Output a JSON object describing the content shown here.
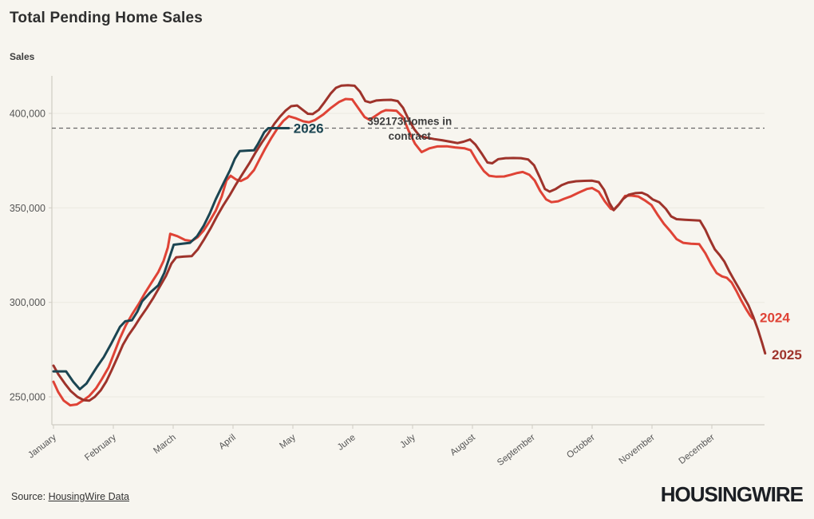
{
  "header": {
    "title": "Total Pending Home Sales",
    "y_axis_title": "Sales"
  },
  "footer": {
    "source_prefix": "Source: ",
    "source_link": "HousingWire Data",
    "logo": "HOUSINGWIRE"
  },
  "colors": {
    "background": "#f7f5ef",
    "axis": "#cfccc3",
    "grid": "#ebe9e1",
    "tick_text": "#555555",
    "reference_line": "#686868",
    "annotation_text": "#3d3d3d",
    "series_2024": "#df4336",
    "series_2025": "#9e332b",
    "series_2026": "#1b4552"
  },
  "chart_data": {
    "type": "line",
    "title": "Total Pending Home Sales",
    "ylabel": "Sales",
    "ylim": [
      235000,
      420000
    ],
    "yticks": [
      250000,
      300000,
      350000,
      400000
    ],
    "xticklabels": [
      "January",
      "February",
      "March",
      "April",
      "May",
      "June",
      "July",
      "August",
      "September",
      "October",
      "November",
      "December"
    ],
    "grid": "horizontal-faint",
    "legend_position": "end-of-line-labels",
    "reference_line": {
      "value": 392173,
      "annotation_line1": "392173Homes in",
      "annotation_line2": "contract",
      "annotation_x_month": 5.95
    },
    "series": [
      {
        "name": "2024",
        "color_key": "series_2024",
        "points": [
          [
            0.0,
            258000
          ],
          [
            0.08,
            252500
          ],
          [
            0.17,
            248000
          ],
          [
            0.28,
            245500
          ],
          [
            0.39,
            246000
          ],
          [
            0.49,
            248000
          ],
          [
            0.6,
            250500
          ],
          [
            0.71,
            254500
          ],
          [
            0.81,
            259500
          ],
          [
            0.92,
            265500
          ],
          [
            1.0,
            272000
          ],
          [
            1.11,
            281000
          ],
          [
            1.21,
            288000
          ],
          [
            1.32,
            294000
          ],
          [
            1.43,
            299500
          ],
          [
            1.53,
            305000
          ],
          [
            1.64,
            310500
          ],
          [
            1.75,
            316000
          ],
          [
            1.84,
            322000
          ],
          [
            1.91,
            329000
          ],
          [
            1.95,
            336300
          ],
          [
            2.07,
            335000
          ],
          [
            2.2,
            333000
          ],
          [
            2.31,
            332500
          ],
          [
            2.41,
            334500
          ],
          [
            2.51,
            338000
          ],
          [
            2.61,
            343000
          ],
          [
            2.71,
            348500
          ],
          [
            2.81,
            356000
          ],
          [
            2.89,
            364500
          ],
          [
            2.96,
            367000
          ],
          [
            3.05,
            365000
          ],
          [
            3.13,
            364200
          ],
          [
            3.24,
            366000
          ],
          [
            3.35,
            370000
          ],
          [
            3.44,
            375500
          ],
          [
            3.53,
            381000
          ],
          [
            3.64,
            387000
          ],
          [
            3.75,
            392500
          ],
          [
            3.84,
            396000
          ],
          [
            3.93,
            398500
          ],
          [
            4.04,
            397500
          ],
          [
            4.17,
            395800
          ],
          [
            4.27,
            395300
          ],
          [
            4.37,
            396500
          ],
          [
            4.51,
            399500
          ],
          [
            4.64,
            403000
          ],
          [
            4.77,
            406000
          ],
          [
            4.88,
            407600
          ],
          [
            4.99,
            407400
          ],
          [
            5.11,
            402000
          ],
          [
            5.2,
            398000
          ],
          [
            5.28,
            396600
          ],
          [
            5.37,
            398500
          ],
          [
            5.48,
            400800
          ],
          [
            5.55,
            401700
          ],
          [
            5.64,
            401600
          ],
          [
            5.73,
            401400
          ],
          [
            5.84,
            398000
          ],
          [
            5.93,
            391000
          ],
          [
            6.04,
            384000
          ],
          [
            6.15,
            379500
          ],
          [
            6.28,
            381500
          ],
          [
            6.41,
            382500
          ],
          [
            6.57,
            382600
          ],
          [
            6.71,
            382000
          ],
          [
            6.87,
            381500
          ],
          [
            6.97,
            380500
          ],
          [
            7.08,
            374500
          ],
          [
            7.19,
            369500
          ],
          [
            7.28,
            367000
          ],
          [
            7.4,
            366500
          ],
          [
            7.53,
            366600
          ],
          [
            7.64,
            367500
          ],
          [
            7.75,
            368500
          ],
          [
            7.84,
            369000
          ],
          [
            7.95,
            367500
          ],
          [
            8.04,
            364500
          ],
          [
            8.13,
            359000
          ],
          [
            8.23,
            354500
          ],
          [
            8.32,
            353000
          ],
          [
            8.43,
            353500
          ],
          [
            8.53,
            354800
          ],
          [
            8.64,
            356000
          ],
          [
            8.77,
            358000
          ],
          [
            8.91,
            360000
          ],
          [
            9.0,
            360500
          ],
          [
            9.11,
            358500
          ],
          [
            9.21,
            353500
          ],
          [
            9.31,
            349500
          ],
          [
            9.36,
            349000
          ],
          [
            9.45,
            352000
          ],
          [
            9.55,
            356300
          ],
          [
            9.65,
            356500
          ],
          [
            9.77,
            356000
          ],
          [
            9.88,
            354000
          ],
          [
            9.99,
            351500
          ],
          [
            10.09,
            346500
          ],
          [
            10.2,
            341500
          ],
          [
            10.31,
            337500
          ],
          [
            10.41,
            333500
          ],
          [
            10.52,
            331500
          ],
          [
            10.65,
            331000
          ],
          [
            10.79,
            330800
          ],
          [
            10.89,
            326000
          ],
          [
            10.99,
            320000
          ],
          [
            11.08,
            315500
          ],
          [
            11.17,
            313700
          ],
          [
            11.25,
            313000
          ],
          [
            11.33,
            310500
          ],
          [
            11.41,
            306000
          ],
          [
            11.49,
            301000
          ],
          [
            11.57,
            296500
          ],
          [
            11.64,
            293000
          ],
          [
            11.68,
            291500
          ]
        ],
        "end_label": {
          "text": "2024",
          "x_month": 11.8,
          "value": 292000
        }
      },
      {
        "name": "2025",
        "color_key": "series_2025",
        "points": [
          [
            0.0,
            266500
          ],
          [
            0.08,
            262000
          ],
          [
            0.19,
            257000
          ],
          [
            0.29,
            253000
          ],
          [
            0.4,
            250000
          ],
          [
            0.51,
            248200
          ],
          [
            0.6,
            248000
          ],
          [
            0.69,
            250000
          ],
          [
            0.79,
            253500
          ],
          [
            0.88,
            258000
          ],
          [
            0.97,
            264000
          ],
          [
            1.07,
            271000
          ],
          [
            1.16,
            277500
          ],
          [
            1.25,
            282500
          ],
          [
            1.35,
            287000
          ],
          [
            1.45,
            292000
          ],
          [
            1.56,
            297000
          ],
          [
            1.67,
            302500
          ],
          [
            1.77,
            308000
          ],
          [
            1.88,
            314000
          ],
          [
            1.97,
            320500
          ],
          [
            2.05,
            323800
          ],
          [
            2.17,
            324200
          ],
          [
            2.31,
            324500
          ],
          [
            2.41,
            328000
          ],
          [
            2.52,
            333500
          ],
          [
            2.63,
            339500
          ],
          [
            2.73,
            345500
          ],
          [
            2.84,
            351500
          ],
          [
            2.95,
            357000
          ],
          [
            3.05,
            362500
          ],
          [
            3.16,
            368000
          ],
          [
            3.27,
            373500
          ],
          [
            3.37,
            379000
          ],
          [
            3.48,
            384500
          ],
          [
            3.59,
            389500
          ],
          [
            3.69,
            394500
          ],
          [
            3.79,
            398500
          ],
          [
            3.88,
            401500
          ],
          [
            3.97,
            403800
          ],
          [
            4.07,
            404200
          ],
          [
            4.16,
            402000
          ],
          [
            4.25,
            399800
          ],
          [
            4.33,
            399600
          ],
          [
            4.43,
            401800
          ],
          [
            4.53,
            406000
          ],
          [
            4.63,
            410500
          ],
          [
            4.72,
            413500
          ],
          [
            4.81,
            414700
          ],
          [
            4.92,
            414900
          ],
          [
            5.03,
            414600
          ],
          [
            5.12,
            411500
          ],
          [
            5.21,
            406500
          ],
          [
            5.29,
            405800
          ],
          [
            5.39,
            406800
          ],
          [
            5.51,
            407100
          ],
          [
            5.64,
            407200
          ],
          [
            5.75,
            406500
          ],
          [
            5.84,
            403000
          ],
          [
            5.93,
            397000
          ],
          [
            6.03,
            391500
          ],
          [
            6.12,
            388000
          ],
          [
            6.23,
            387200
          ],
          [
            6.36,
            386400
          ],
          [
            6.49,
            385800
          ],
          [
            6.63,
            385000
          ],
          [
            6.75,
            384300
          ],
          [
            6.85,
            385000
          ],
          [
            6.96,
            386200
          ],
          [
            7.05,
            383500
          ],
          [
            7.16,
            378500
          ],
          [
            7.25,
            374000
          ],
          [
            7.33,
            373600
          ],
          [
            7.43,
            375800
          ],
          [
            7.55,
            376300
          ],
          [
            7.68,
            376400
          ],
          [
            7.81,
            376300
          ],
          [
            7.93,
            375600
          ],
          [
            8.03,
            372500
          ],
          [
            8.12,
            366500
          ],
          [
            8.21,
            360000
          ],
          [
            8.29,
            358600
          ],
          [
            8.39,
            360000
          ],
          [
            8.49,
            362000
          ],
          [
            8.6,
            363400
          ],
          [
            8.73,
            364100
          ],
          [
            8.87,
            364300
          ],
          [
            9.0,
            364400
          ],
          [
            9.11,
            363600
          ],
          [
            9.2,
            359500
          ],
          [
            9.29,
            352500
          ],
          [
            9.36,
            348800
          ],
          [
            9.44,
            351500
          ],
          [
            9.52,
            354800
          ],
          [
            9.61,
            357000
          ],
          [
            9.72,
            357800
          ],
          [
            9.83,
            358000
          ],
          [
            9.92,
            356800
          ],
          [
            10.01,
            354500
          ],
          [
            10.12,
            353000
          ],
          [
            10.23,
            349500
          ],
          [
            10.32,
            345500
          ],
          [
            10.41,
            344000
          ],
          [
            10.55,
            343700
          ],
          [
            10.68,
            343500
          ],
          [
            10.8,
            343300
          ],
          [
            10.89,
            338500
          ],
          [
            10.97,
            333000
          ],
          [
            11.05,
            328000
          ],
          [
            11.13,
            325000
          ],
          [
            11.21,
            321500
          ],
          [
            11.29,
            316500
          ],
          [
            11.37,
            312000
          ],
          [
            11.45,
            307500
          ],
          [
            11.53,
            303000
          ],
          [
            11.61,
            298500
          ],
          [
            11.69,
            292500
          ],
          [
            11.77,
            285500
          ],
          [
            11.84,
            278500
          ],
          [
            11.89,
            273000
          ]
        ],
        "end_label": {
          "text": "2025",
          "x_month": 12.0,
          "value": 272500
        }
      },
      {
        "name": "2026",
        "color_key": "series_2026",
        "points": [
          [
            0.0,
            263500
          ],
          [
            0.21,
            263500
          ],
          [
            0.33,
            258000
          ],
          [
            0.44,
            254000
          ],
          [
            0.55,
            257000
          ],
          [
            0.64,
            261500
          ],
          [
            0.73,
            266000
          ],
          [
            0.84,
            271000
          ],
          [
            0.97,
            278500
          ],
          [
            1.11,
            287000
          ],
          [
            1.2,
            290000
          ],
          [
            1.31,
            290500
          ],
          [
            1.4,
            295000
          ],
          [
            1.48,
            300500
          ],
          [
            1.61,
            305000
          ],
          [
            1.75,
            309000
          ],
          [
            1.85,
            315500
          ],
          [
            1.93,
            323000
          ],
          [
            2.01,
            330500
          ],
          [
            2.15,
            331000
          ],
          [
            2.28,
            331500
          ],
          [
            2.4,
            335000
          ],
          [
            2.51,
            340500
          ],
          [
            2.61,
            347000
          ],
          [
            2.71,
            354500
          ],
          [
            2.84,
            363000
          ],
          [
            2.95,
            370000
          ],
          [
            3.03,
            376000
          ],
          [
            3.11,
            380000
          ],
          [
            3.24,
            380300
          ],
          [
            3.35,
            380500
          ],
          [
            3.41,
            383500
          ],
          [
            3.47,
            387000
          ],
          [
            3.52,
            390000
          ],
          [
            3.59,
            392173
          ],
          [
            3.75,
            392173
          ],
          [
            3.93,
            392173
          ]
        ],
        "end_label": {
          "text": "2026",
          "x_month": 4.01,
          "value": 392173
        }
      }
    ]
  }
}
